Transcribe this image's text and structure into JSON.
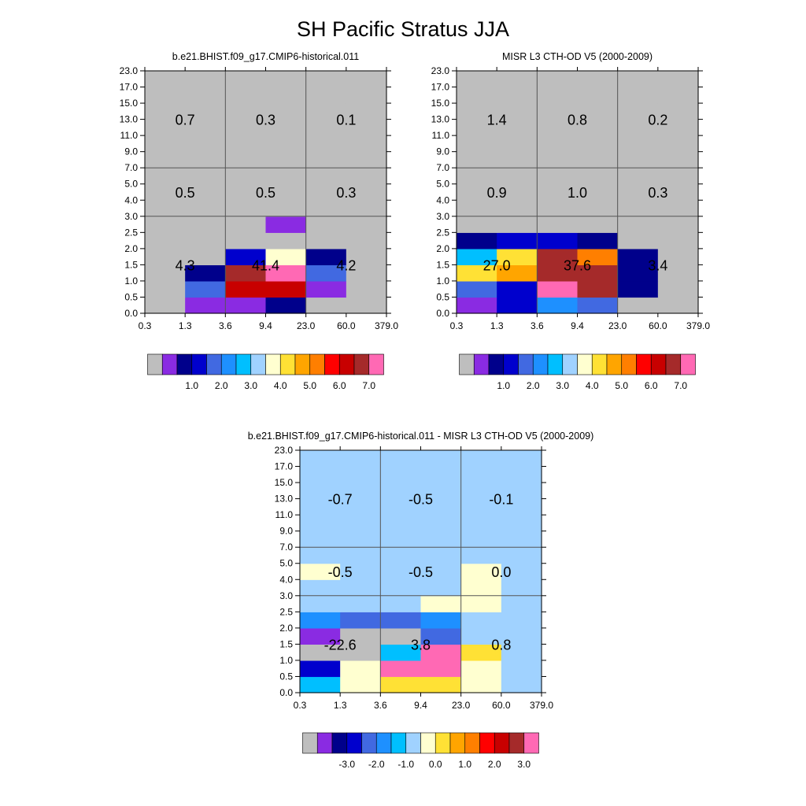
{
  "title": "SH Pacific Stratus JJA",
  "x_tick_labels": [
    "0.3",
    "1.3",
    "3.6",
    "9.4",
    "23.0",
    "60.0",
    "379.0"
  ],
  "y_tick_labels": [
    "0.0",
    "0.5",
    "1.0",
    "1.5",
    "2.0",
    "2.5",
    "3.0",
    "4.0",
    "5.0",
    "7.0",
    "9.0",
    "11.0",
    "13.0",
    "15.0",
    "17.0",
    "23.0"
  ],
  "palette": [
    "#bebebe",
    "#8a2be2",
    "#00008b",
    "#0000cd",
    "#4169e1",
    "#1e90ff",
    "#00bfff",
    "#a0d2ff",
    "#ffffd0",
    "#ffe135",
    "#ffa500",
    "#ff7f00",
    "#ff0000",
    "#c80000",
    "#a52a2a",
    "#ff69b4"
  ],
  "chart_data": [
    {
      "type": "heatmap",
      "title": "b.e21.BHIST.f09_g17.CMIP6-historical.011",
      "xlabel": "",
      "ylabel": "",
      "x_bins": [
        "0.3",
        "1.3",
        "3.6",
        "9.4",
        "23.0",
        "60.0",
        "379.0"
      ],
      "y_bins": [
        "0.0",
        "0.5",
        "1.0",
        "1.5",
        "2.0",
        "2.5",
        "3.0",
        "4.0",
        "5.0",
        "7.0",
        "9.0",
        "11.0",
        "13.0",
        "15.0",
        "17.0",
        "23.0"
      ],
      "grid_color_index": [
        [
          0,
          1,
          1,
          2,
          0,
          0
        ],
        [
          0,
          4,
          13,
          13,
          1,
          0
        ],
        [
          0,
          2,
          14,
          15,
          4,
          0
        ],
        [
          0,
          0,
          3,
          8,
          2,
          0
        ],
        [
          0,
          0,
          0,
          0,
          0,
          0
        ],
        [
          0,
          0,
          0,
          1,
          0,
          0
        ],
        [
          0,
          0,
          0,
          0,
          0,
          0
        ],
        [
          0,
          0,
          0,
          0,
          0,
          0
        ],
        [
          0,
          0,
          0,
          0,
          0,
          0
        ],
        [
          0,
          0,
          0,
          0,
          0,
          0
        ],
        [
          0,
          0,
          0,
          0,
          0,
          0
        ],
        [
          0,
          0,
          0,
          0,
          0,
          0
        ],
        [
          0,
          0,
          0,
          0,
          0,
          0
        ],
        [
          0,
          0,
          0,
          0,
          0,
          0
        ],
        [
          0,
          0,
          0,
          0,
          0,
          0
        ]
      ],
      "region_values": [
        {
          "x": "1.3",
          "y": "13.0",
          "value": "0.7"
        },
        {
          "x": "9.4",
          "y": "13.0",
          "value": "0.3"
        },
        {
          "x": "60.0",
          "y": "13.0",
          "value": "0.1"
        },
        {
          "x": "1.3",
          "y": "4.0",
          "value": "0.5"
        },
        {
          "x": "9.4",
          "y": "4.0",
          "value": "0.5"
        },
        {
          "x": "60.0",
          "y": "4.0",
          "value": "0.3"
        },
        {
          "x": "1.3",
          "y": "1.5",
          "value": "4.3"
        },
        {
          "x": "9.4",
          "y": "1.5",
          "value": "41.4"
        },
        {
          "x": "60.0",
          "y": "1.5",
          "value": "4.2"
        }
      ],
      "colorbar_labels": [
        "1.0",
        "2.0",
        "3.0",
        "4.0",
        "5.0",
        "6.0",
        "7.0"
      ]
    },
    {
      "type": "heatmap",
      "title": "MISR L3 CTH-OD V5 (2000-2009)",
      "xlabel": "",
      "ylabel": "",
      "x_bins": [
        "0.3",
        "1.3",
        "3.6",
        "9.4",
        "23.0",
        "60.0",
        "379.0"
      ],
      "y_bins": [
        "0.0",
        "0.5",
        "1.0",
        "1.5",
        "2.0",
        "2.5",
        "3.0",
        "4.0",
        "5.0",
        "7.0",
        "9.0",
        "11.0",
        "13.0",
        "15.0",
        "17.0",
        "23.0"
      ],
      "grid_color_index": [
        [
          1,
          3,
          5,
          4,
          0,
          0
        ],
        [
          4,
          3,
          15,
          14,
          2,
          0
        ],
        [
          9,
          10,
          14,
          14,
          2,
          0
        ],
        [
          6,
          9,
          14,
          11,
          2,
          0
        ],
        [
          2,
          3,
          3,
          2,
          0,
          0
        ],
        [
          0,
          0,
          0,
          0,
          0,
          0
        ],
        [
          0,
          0,
          0,
          0,
          0,
          0
        ],
        [
          0,
          0,
          0,
          0,
          0,
          0
        ],
        [
          0,
          0,
          0,
          0,
          0,
          0
        ],
        [
          0,
          0,
          0,
          0,
          0,
          0
        ],
        [
          0,
          0,
          0,
          0,
          0,
          0
        ],
        [
          0,
          0,
          0,
          0,
          0,
          0
        ],
        [
          0,
          0,
          0,
          0,
          0,
          0
        ],
        [
          0,
          0,
          0,
          0,
          0,
          0
        ],
        [
          0,
          0,
          0,
          0,
          0,
          0
        ]
      ],
      "region_values": [
        {
          "x": "1.3",
          "y": "13.0",
          "value": "1.4"
        },
        {
          "x": "9.4",
          "y": "13.0",
          "value": "0.8"
        },
        {
          "x": "60.0",
          "y": "13.0",
          "value": "0.2"
        },
        {
          "x": "1.3",
          "y": "4.0",
          "value": "0.9"
        },
        {
          "x": "9.4",
          "y": "4.0",
          "value": "1.0"
        },
        {
          "x": "60.0",
          "y": "4.0",
          "value": "0.3"
        },
        {
          "x": "1.3",
          "y": "1.5",
          "value": "27.0"
        },
        {
          "x": "9.4",
          "y": "1.5",
          "value": "37.6"
        },
        {
          "x": "60.0",
          "y": "1.5",
          "value": "3.4"
        }
      ],
      "colorbar_labels": [
        "1.0",
        "2.0",
        "3.0",
        "4.0",
        "5.0",
        "6.0",
        "7.0"
      ]
    },
    {
      "type": "heatmap",
      "title": "b.e21.BHIST.f09_g17.CMIP6-historical.011 - MISR L3 CTH-OD V5 (2000-2009)",
      "xlabel": "",
      "ylabel": "",
      "x_bins": [
        "0.3",
        "1.3",
        "3.6",
        "9.4",
        "23.0",
        "60.0",
        "379.0"
      ],
      "y_bins": [
        "0.0",
        "0.5",
        "1.0",
        "1.5",
        "2.0",
        "2.5",
        "3.0",
        "4.0",
        "5.0",
        "7.0",
        "9.0",
        "11.0",
        "13.0",
        "15.0",
        "17.0",
        "23.0"
      ],
      "grid_color_index": [
        [
          6,
          8,
          9,
          9,
          8,
          7
        ],
        [
          3,
          8,
          15,
          15,
          8,
          7
        ],
        [
          0,
          0,
          6,
          15,
          9,
          7
        ],
        [
          1,
          0,
          0,
          4,
          7,
          7
        ],
        [
          5,
          4,
          4,
          5,
          7,
          7
        ],
        [
          7,
          7,
          7,
          8,
          8,
          7
        ],
        [
          7,
          7,
          7,
          7,
          8,
          7
        ],
        [
          8,
          7,
          7,
          7,
          8,
          7
        ],
        [
          7,
          7,
          7,
          7,
          7,
          7
        ],
        [
          7,
          7,
          7,
          7,
          7,
          7
        ],
        [
          7,
          7,
          7,
          7,
          7,
          7
        ],
        [
          7,
          7,
          7,
          7,
          7,
          7
        ],
        [
          7,
          7,
          7,
          7,
          7,
          7
        ],
        [
          7,
          7,
          7,
          7,
          7,
          7
        ],
        [
          7,
          7,
          7,
          7,
          7,
          7
        ]
      ],
      "region_values": [
        {
          "x": "1.3",
          "y": "13.0",
          "value": "-0.7"
        },
        {
          "x": "9.4",
          "y": "13.0",
          "value": "-0.5"
        },
        {
          "x": "60.0",
          "y": "13.0",
          "value": "-0.1"
        },
        {
          "x": "1.3",
          "y": "4.0",
          "value": "-0.5"
        },
        {
          "x": "9.4",
          "y": "4.0",
          "value": "-0.5"
        },
        {
          "x": "60.0",
          "y": "4.0",
          "value": "0.0"
        },
        {
          "x": "1.3",
          "y": "1.5",
          "value": "-22.6"
        },
        {
          "x": "9.4",
          "y": "1.5",
          "value": "3.8"
        },
        {
          "x": "60.0",
          "y": "1.5",
          "value": "0.8"
        }
      ],
      "colorbar_labels": [
        "-3.0",
        "-2.0",
        "-1.0",
        "0.0",
        "1.0",
        "2.0",
        "3.0"
      ]
    }
  ]
}
